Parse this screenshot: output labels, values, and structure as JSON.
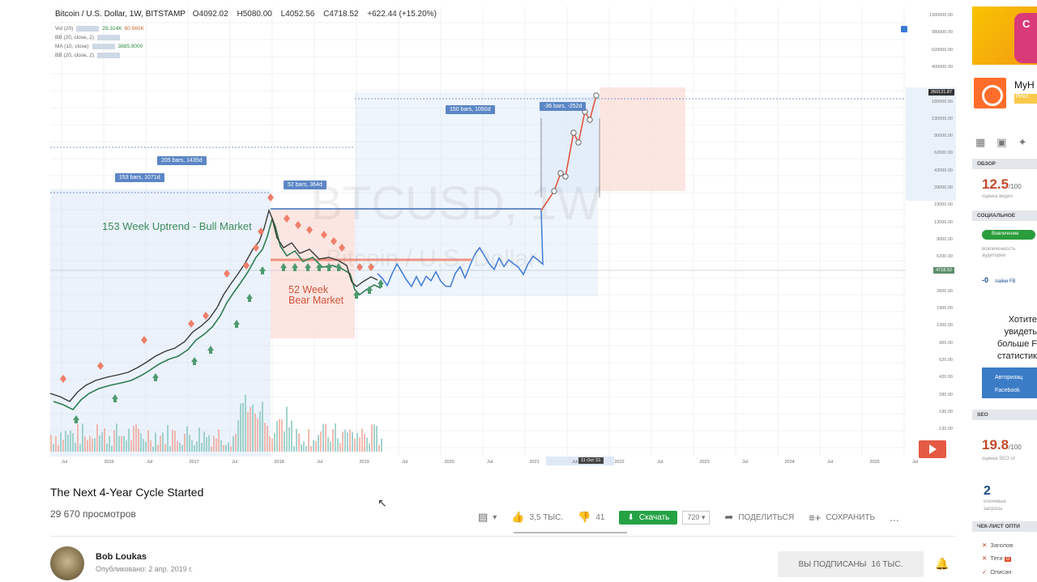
{
  "chart": {
    "symbol": "Bitcoin / U.S. Dollar, 1W, BITSTAMP",
    "ohlc": {
      "open": "O4092.02",
      "high": "H5080.00",
      "low": "L4052.56",
      "close": "C4718.52",
      "change": "+622.44 (+15.20%)"
    },
    "indicators": [
      {
        "name": "Vol (20)",
        "v1": "29.314K",
        "v2": "60.565K"
      },
      {
        "name": "BB (20, close, 2)",
        "v1": "",
        "v2": ""
      },
      {
        "name": "MA (10, close)",
        "v1": "3885.9000",
        "v2": ""
      },
      {
        "name": "BB (20, close, 2)",
        "v1": "",
        "v2": ""
      }
    ],
    "labels": {
      "bars205": "205 bars, 1435d",
      "bars153": "153 bars, 1071d",
      "bars52": "52 bars, 364d",
      "bars150": "150 bars, 1050d",
      "bars36": "-36 bars, -252d"
    },
    "annotations": {
      "bull": "153 Week Uptrend - Bull Market",
      "bear_line1": "52 Week",
      "bear_line2": "Bear Market"
    },
    "watermark": {
      "line1": "BTCUSD, 1W",
      "line2": "Bitcoin / U.S. Dollar"
    },
    "price_ticks": [
      "1300000.00",
      "980000.00",
      "620000.00",
      "400000.00",
      "260121.87",
      "180000.00",
      "130000.00",
      "90000.00",
      "62000.00",
      "42000.00",
      "28000.00",
      "19000.00",
      "13000.00",
      "9000.00",
      "6200.00",
      "4718.52",
      "2800.00",
      "1900.00",
      "1300.00",
      "900.00",
      "620.00",
      "420.00",
      "280.00",
      "190.00",
      "130.00"
    ],
    "current_price": "4718.52",
    "top_price": "260121.87",
    "time_ticks": [
      "Jul",
      "2016",
      "Jul",
      "2017",
      "Jul",
      "2018",
      "Jul",
      "2019",
      "Jul",
      "2020",
      "Jul",
      "2021",
      "Jul",
      "2022",
      "Jul",
      "2023",
      "Jul",
      "2024",
      "Jul",
      "2025",
      "Jul"
    ],
    "time_tag": "11 Oct '21"
  },
  "video": {
    "title": "The Next 4-Year Cycle Started",
    "views": "29 670 просмотров",
    "likes": "3,5 ТЫС.",
    "dislikes": "41",
    "download": "Скачать",
    "quality": "720",
    "share": "ПОДЕЛИТЬСЯ",
    "save": "СОХРАНИТЬ",
    "more": "...",
    "channel": "Bob Loukas",
    "published": "Опубликовано: 2 апр. 2019 г.",
    "subscribed": "ВЫ ПОДПИСАНЫ",
    "subscribers": "16 ТЫС."
  },
  "side": {
    "ad_text": "C",
    "channel_title": "MyH",
    "badge": "Рекл",
    "overview_hdr": "ОБЗОР",
    "score": "12.5",
    "score_max": "/100",
    "score_cap": "оценка видео",
    "social_hdr": "СОЦИАЛЬНОЕ",
    "soc_pill": "Вовлечение",
    "soc_cap1": "вовлеченность",
    "soc_cap2": "аудитории",
    "fb_value": "-0",
    "fb_label": "лайки FB",
    "want1": "Хотите",
    "want2": "увидеть",
    "want3": "больше F",
    "want4": "статистик",
    "fb_btn1": "Авторизац",
    "fb_btn2": "Facebook",
    "seo_hdr": "SEO",
    "seo_score": "19.8",
    "seo_max": "/100",
    "seo_cap": "оценка SEO от",
    "kw_num": "2",
    "kw_cap1": "ключевые",
    "kw_cap2": "запросы",
    "check_hdr": "ЧЕК-ЛИСТ ОПТИ",
    "check1": "Заголов",
    "check2": "Теги",
    "check3": "Описан"
  }
}
